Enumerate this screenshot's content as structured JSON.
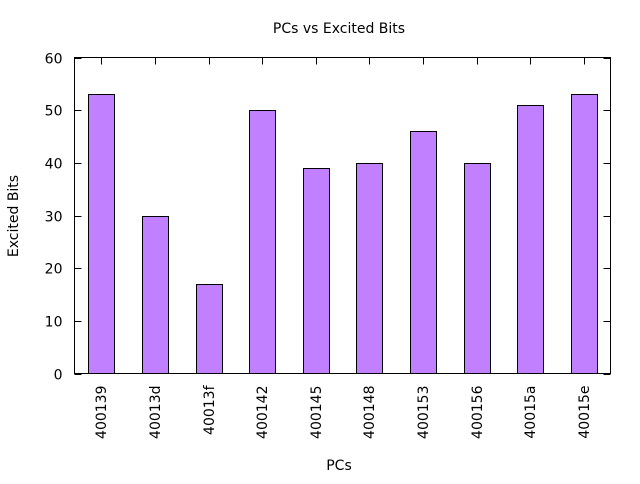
{
  "chart_data": {
    "type": "bar",
    "title": "PCs vs Excited Bits",
    "xlabel": "PCs",
    "ylabel": "Excited Bits",
    "categories": [
      "400139",
      "40013d",
      "40013f",
      "400142",
      "400145",
      "400148",
      "400153",
      "400156",
      "40015a",
      "40015e"
    ],
    "series": [
      {
        "values": [
          53,
          30,
          17,
          50,
          39,
          40,
          46,
          40,
          51,
          53
        ]
      }
    ],
    "ylim": [
      0,
      60
    ],
    "yticks": [
      "0",
      "10",
      "20",
      "30",
      "40",
      "50",
      "60"
    ],
    "grid": false,
    "legend": "none",
    "bar_color": "#c080ff",
    "bar_edge_color": "#000000"
  }
}
